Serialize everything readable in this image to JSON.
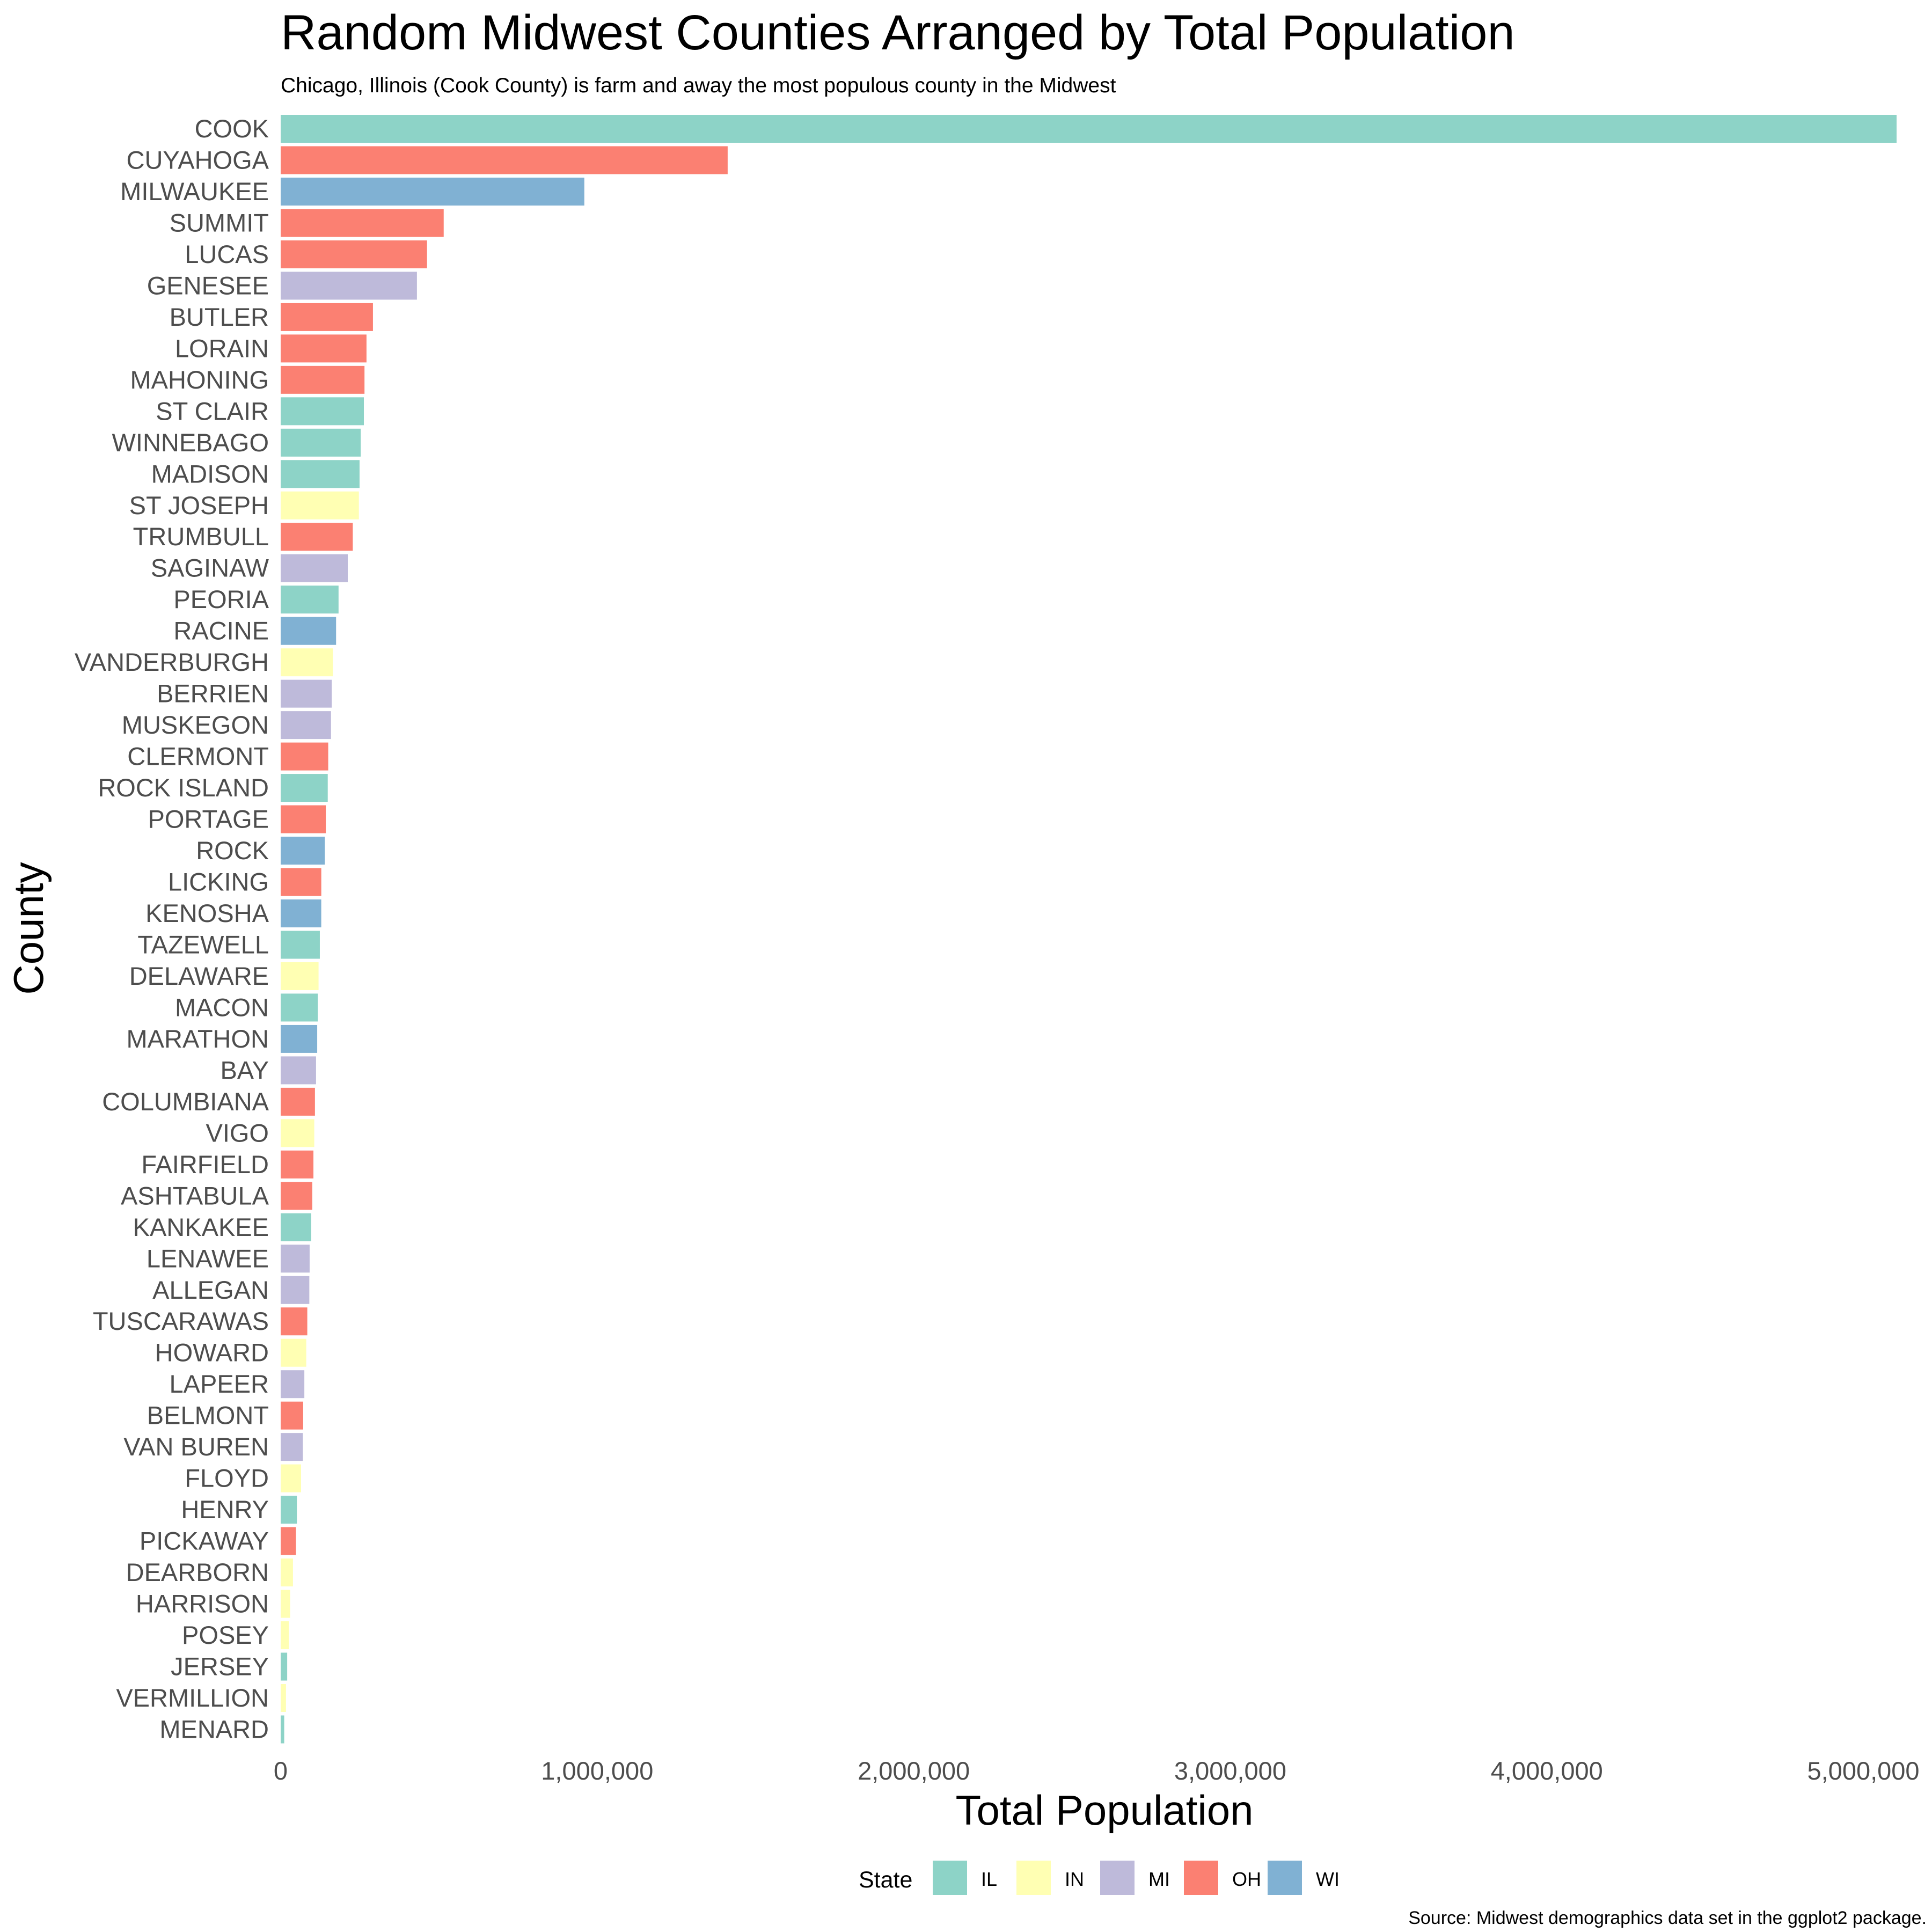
{
  "chart_data": {
    "type": "bar",
    "orientation": "horizontal",
    "title": "Random Midwest Counties Arranged by Total Population",
    "subtitle": "Chicago, Illinois (Cook County) is farm and away the most populous county in the Midwest",
    "xlabel": "Total Population",
    "ylabel": "County",
    "caption": "Source: Midwest demographics data set in the ggplot2 package.",
    "xlim": [
      0,
      5200000
    ],
    "xticks": [
      0,
      1000000,
      2000000,
      3000000,
      4000000,
      5000000
    ],
    "xtick_labels": [
      "0",
      "1,000,000",
      "2,000,000",
      "3,000,000",
      "4,000,000",
      "5,000,000"
    ],
    "grid": false,
    "legend": {
      "title": "State",
      "position": "bottom",
      "entries": [
        {
          "key": "IL",
          "label": "IL",
          "color": "#8DD3C7"
        },
        {
          "key": "IN",
          "label": "IN",
          "color": "#FFFFB3"
        },
        {
          "key": "MI",
          "label": "MI",
          "color": "#BEBADA"
        },
        {
          "key": "OH",
          "label": "OH",
          "color": "#FB8072"
        },
        {
          "key": "WI",
          "label": "WI",
          "color": "#80B1D3"
        }
      ]
    },
    "bars": [
      {
        "county": "COOK",
        "state": "IL",
        "value": 5105067
      },
      {
        "county": "CUYAHOGA",
        "state": "OH",
        "value": 1412140
      },
      {
        "county": "MILWAUKEE",
        "state": "WI",
        "value": 959275
      },
      {
        "county": "SUMMIT",
        "state": "OH",
        "value": 514990
      },
      {
        "county": "LUCAS",
        "state": "OH",
        "value": 462361
      },
      {
        "county": "GENESEE",
        "state": "MI",
        "value": 430459
      },
      {
        "county": "BUTLER",
        "state": "OH",
        "value": 291479
      },
      {
        "county": "LORAIN",
        "state": "OH",
        "value": 271126
      },
      {
        "county": "MAHONING",
        "state": "OH",
        "value": 264806
      },
      {
        "county": "ST CLAIR",
        "state": "IL",
        "value": 262852
      },
      {
        "county": "WINNEBAGO",
        "state": "IL",
        "value": 252913
      },
      {
        "county": "MADISON",
        "state": "IL",
        "value": 249238
      },
      {
        "county": "ST JOSEPH",
        "state": "IN",
        "value": 247052
      },
      {
        "county": "TRUMBULL",
        "state": "OH",
        "value": 227813
      },
      {
        "county": "SAGINAW",
        "state": "MI",
        "value": 211946
      },
      {
        "county": "PEORIA",
        "state": "IL",
        "value": 182827
      },
      {
        "county": "RACINE",
        "state": "WI",
        "value": 175034
      },
      {
        "county": "VANDERBURGH",
        "state": "IN",
        "value": 165058
      },
      {
        "county": "BERRIEN",
        "state": "MI",
        "value": 161378
      },
      {
        "county": "MUSKEGON",
        "state": "MI",
        "value": 158983
      },
      {
        "county": "CLERMONT",
        "state": "OH",
        "value": 150187
      },
      {
        "county": "ROCK ISLAND",
        "state": "IL",
        "value": 148723
      },
      {
        "county": "PORTAGE",
        "state": "OH",
        "value": 142585
      },
      {
        "county": "ROCK",
        "state": "WI",
        "value": 139510
      },
      {
        "county": "LICKING",
        "state": "OH",
        "value": 128300
      },
      {
        "county": "KENOSHA",
        "state": "WI",
        "value": 128181
      },
      {
        "county": "TAZEWELL",
        "state": "IL",
        "value": 123692
      },
      {
        "county": "DELAWARE",
        "state": "IN",
        "value": 119659
      },
      {
        "county": "MACON",
        "state": "IL",
        "value": 117206
      },
      {
        "county": "MARATHON",
        "state": "WI",
        "value": 115400
      },
      {
        "county": "BAY",
        "state": "MI",
        "value": 111723
      },
      {
        "county": "COLUMBIANA",
        "state": "OH",
        "value": 108276
      },
      {
        "county": "VIGO",
        "state": "IN",
        "value": 106107
      },
      {
        "county": "FAIRFIELD",
        "state": "OH",
        "value": 103461
      },
      {
        "county": "ASHTABULA",
        "state": "OH",
        "value": 99821
      },
      {
        "county": "KANKAKEE",
        "state": "IL",
        "value": 96255
      },
      {
        "county": "LENAWEE",
        "state": "MI",
        "value": 91476
      },
      {
        "county": "ALLEGAN",
        "state": "MI",
        "value": 90509
      },
      {
        "county": "TUSCARAWAS",
        "state": "OH",
        "value": 84090
      },
      {
        "county": "HOWARD",
        "state": "IN",
        "value": 80827
      },
      {
        "county": "LAPEER",
        "state": "MI",
        "value": 74768
      },
      {
        "county": "BELMONT",
        "state": "OH",
        "value": 71074
      },
      {
        "county": "VAN BUREN",
        "state": "MI",
        "value": 70060
      },
      {
        "county": "FLOYD",
        "state": "IN",
        "value": 64404
      },
      {
        "county": "HENRY",
        "state": "IL",
        "value": 51159
      },
      {
        "county": "PICKAWAY",
        "state": "OH",
        "value": 48255
      },
      {
        "county": "DEARBORN",
        "state": "IN",
        "value": 38835
      },
      {
        "county": "HARRISON",
        "state": "IN",
        "value": 29890
      },
      {
        "county": "POSEY",
        "state": "IN",
        "value": 25968
      },
      {
        "county": "JERSEY",
        "state": "IL",
        "value": 20539
      },
      {
        "county": "VERMILLION",
        "state": "IN",
        "value": 16773
      },
      {
        "county": "MENARD",
        "state": "IL",
        "value": 11164
      }
    ]
  }
}
